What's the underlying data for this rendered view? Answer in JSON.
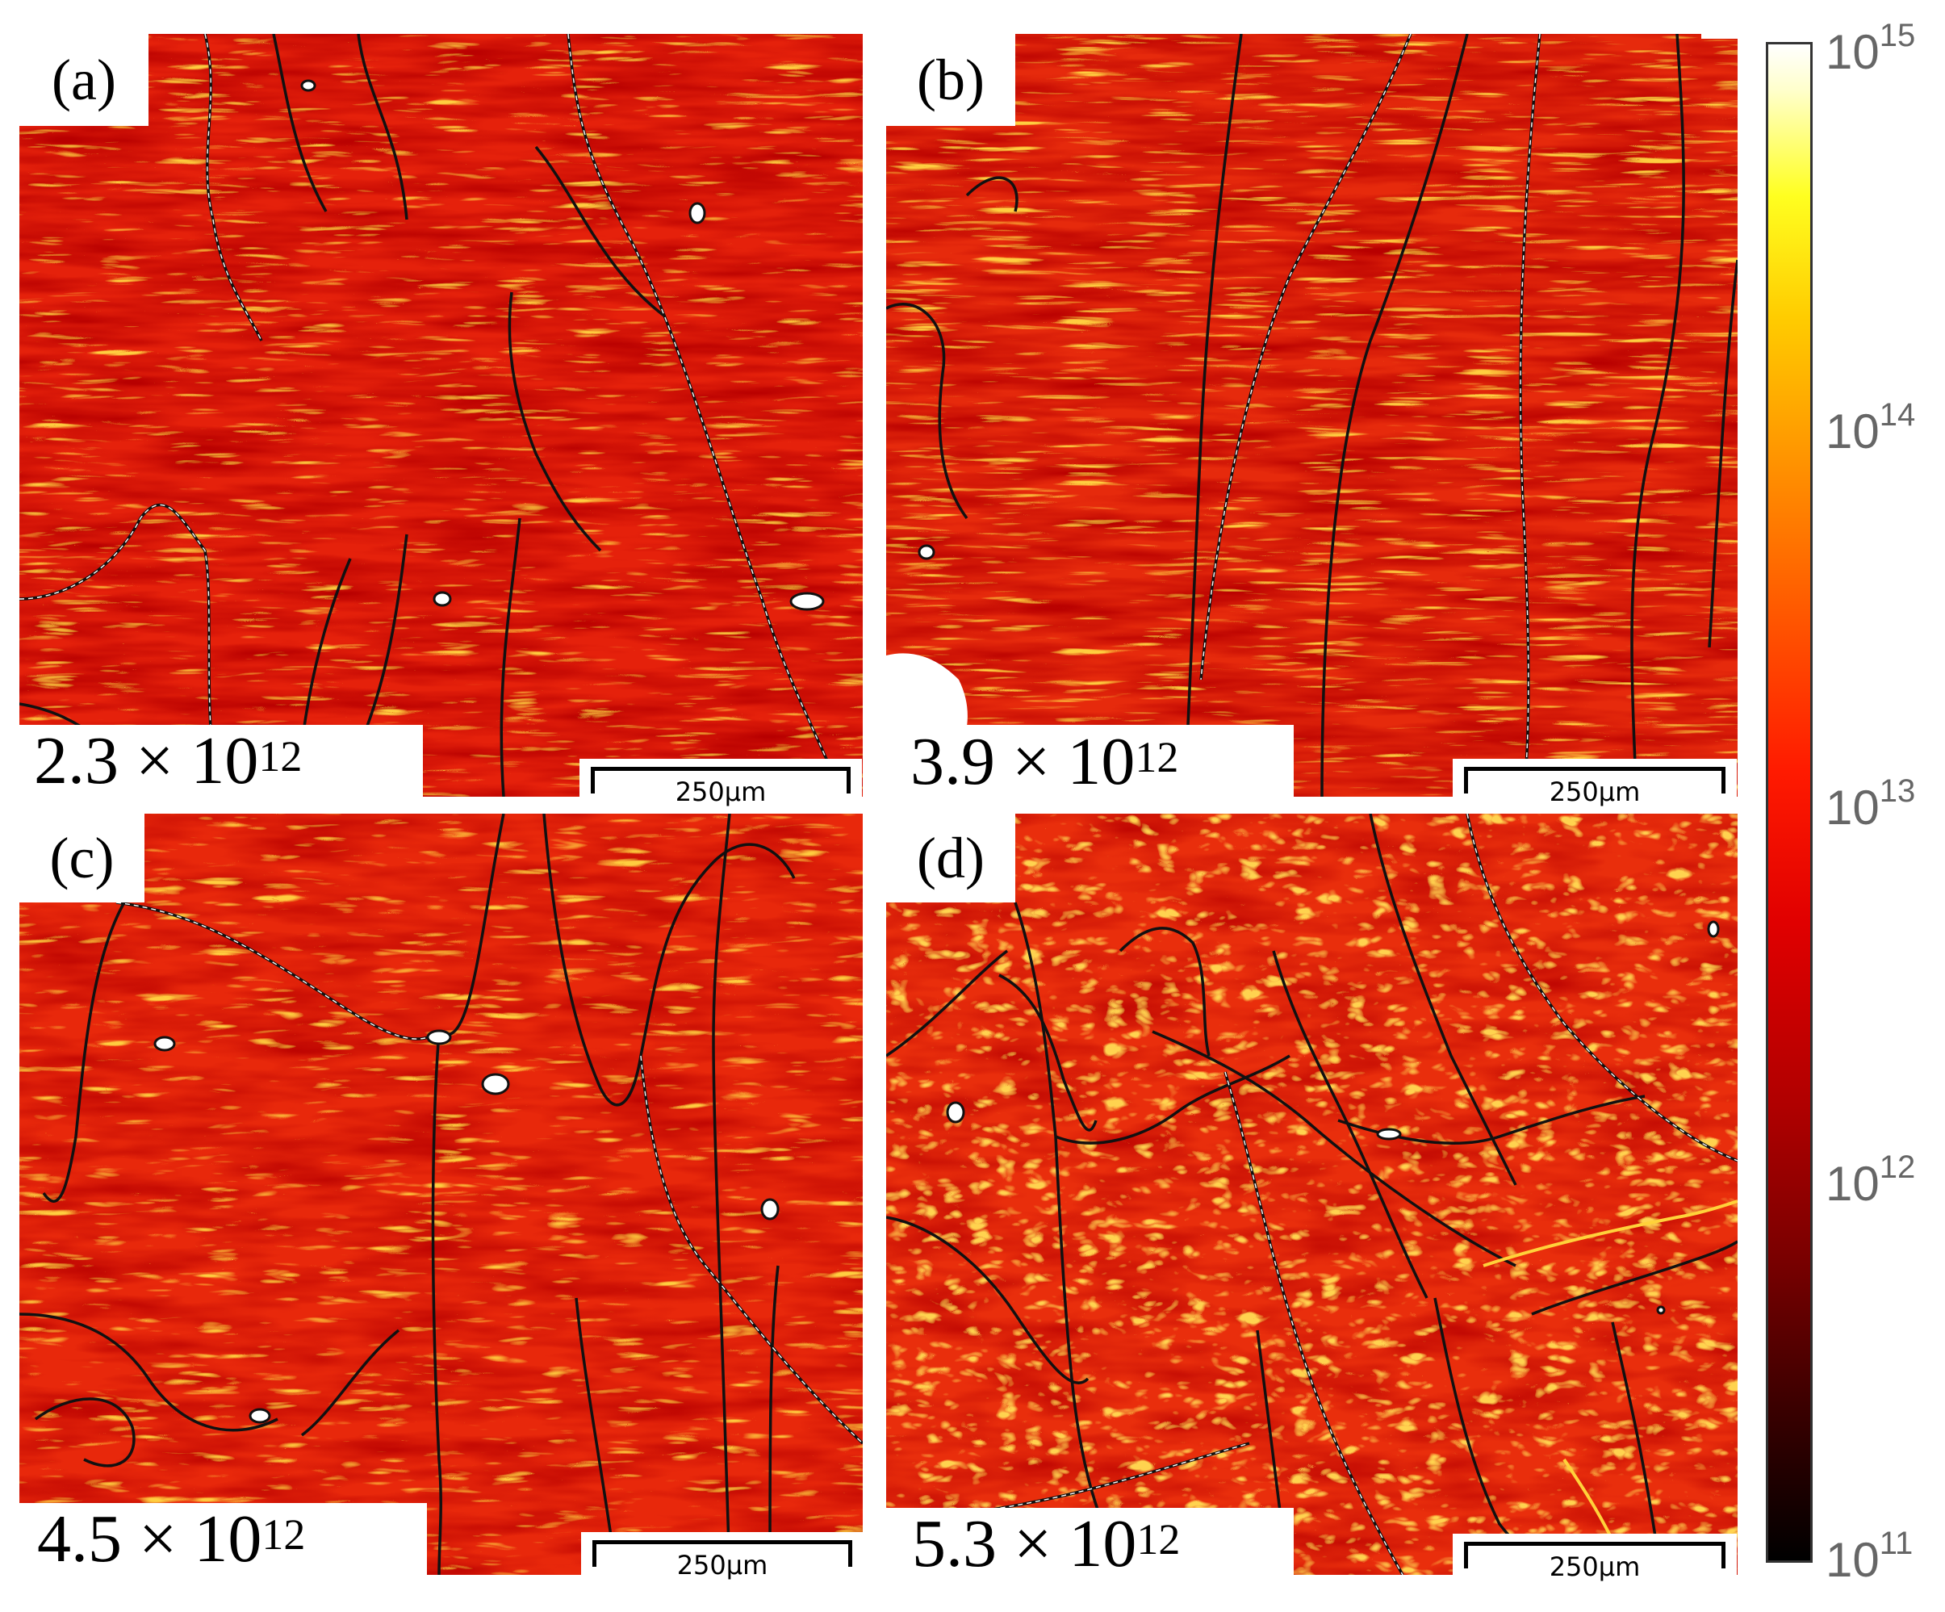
{
  "panels": [
    {
      "letter": "(a)",
      "density_mantissa": "2.3 × 10",
      "density_exp": "12",
      "scale_label": "250µm"
    },
    {
      "letter": "(b)",
      "density_mantissa": "3.9 × 10",
      "density_exp": "12",
      "scale_label": "250µm"
    },
    {
      "letter": "(c)",
      "density_mantissa": "4.5 × 10",
      "density_exp": "12",
      "scale_label": "250µm"
    },
    {
      "letter": "(d)",
      "density_mantissa": "5.3 × 10",
      "density_exp": "12",
      "scale_label": "250µm"
    }
  ],
  "colorbar": {
    "ticks": [
      {
        "base": "10",
        "exp": "15"
      },
      {
        "base": "10",
        "exp": "14"
      },
      {
        "base": "10",
        "exp": "13"
      },
      {
        "base": "10",
        "exp": "12"
      },
      {
        "base": "10",
        "exp": "11"
      }
    ],
    "colors": [
      "#000000",
      "#8b0000",
      "#e00000",
      "#ff4500",
      "#ffa500",
      "#ffff00",
      "#ffffff"
    ]
  },
  "map_colors": {
    "base": "#e8200a",
    "dark": "#7a0000",
    "bright": "#ffb000",
    "boundary": "#111111",
    "highlight": "#ffffff"
  }
}
